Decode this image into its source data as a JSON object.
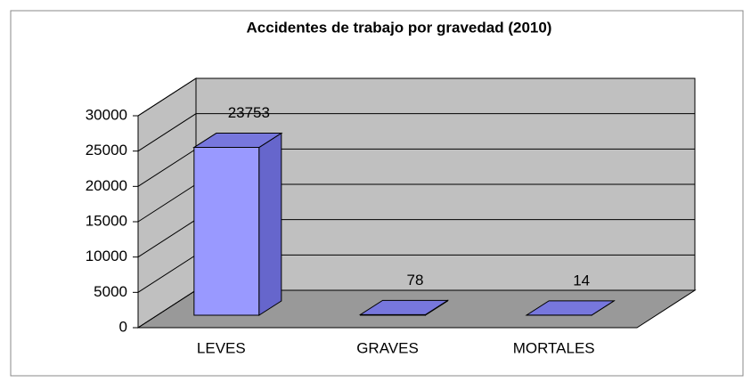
{
  "chart_data": {
    "type": "bar3d",
    "title": "Accidentes de trabajo por gravedad (2010)",
    "categories": [
      "LEVES",
      "GRAVES",
      "MORTALES"
    ],
    "values": [
      23753,
      78,
      14
    ],
    "color": "#9999ff",
    "ylim": [
      0,
      30000
    ],
    "yticks": [
      0,
      5000,
      10000,
      15000,
      20000,
      25000,
      30000
    ],
    "grid": true
  }
}
